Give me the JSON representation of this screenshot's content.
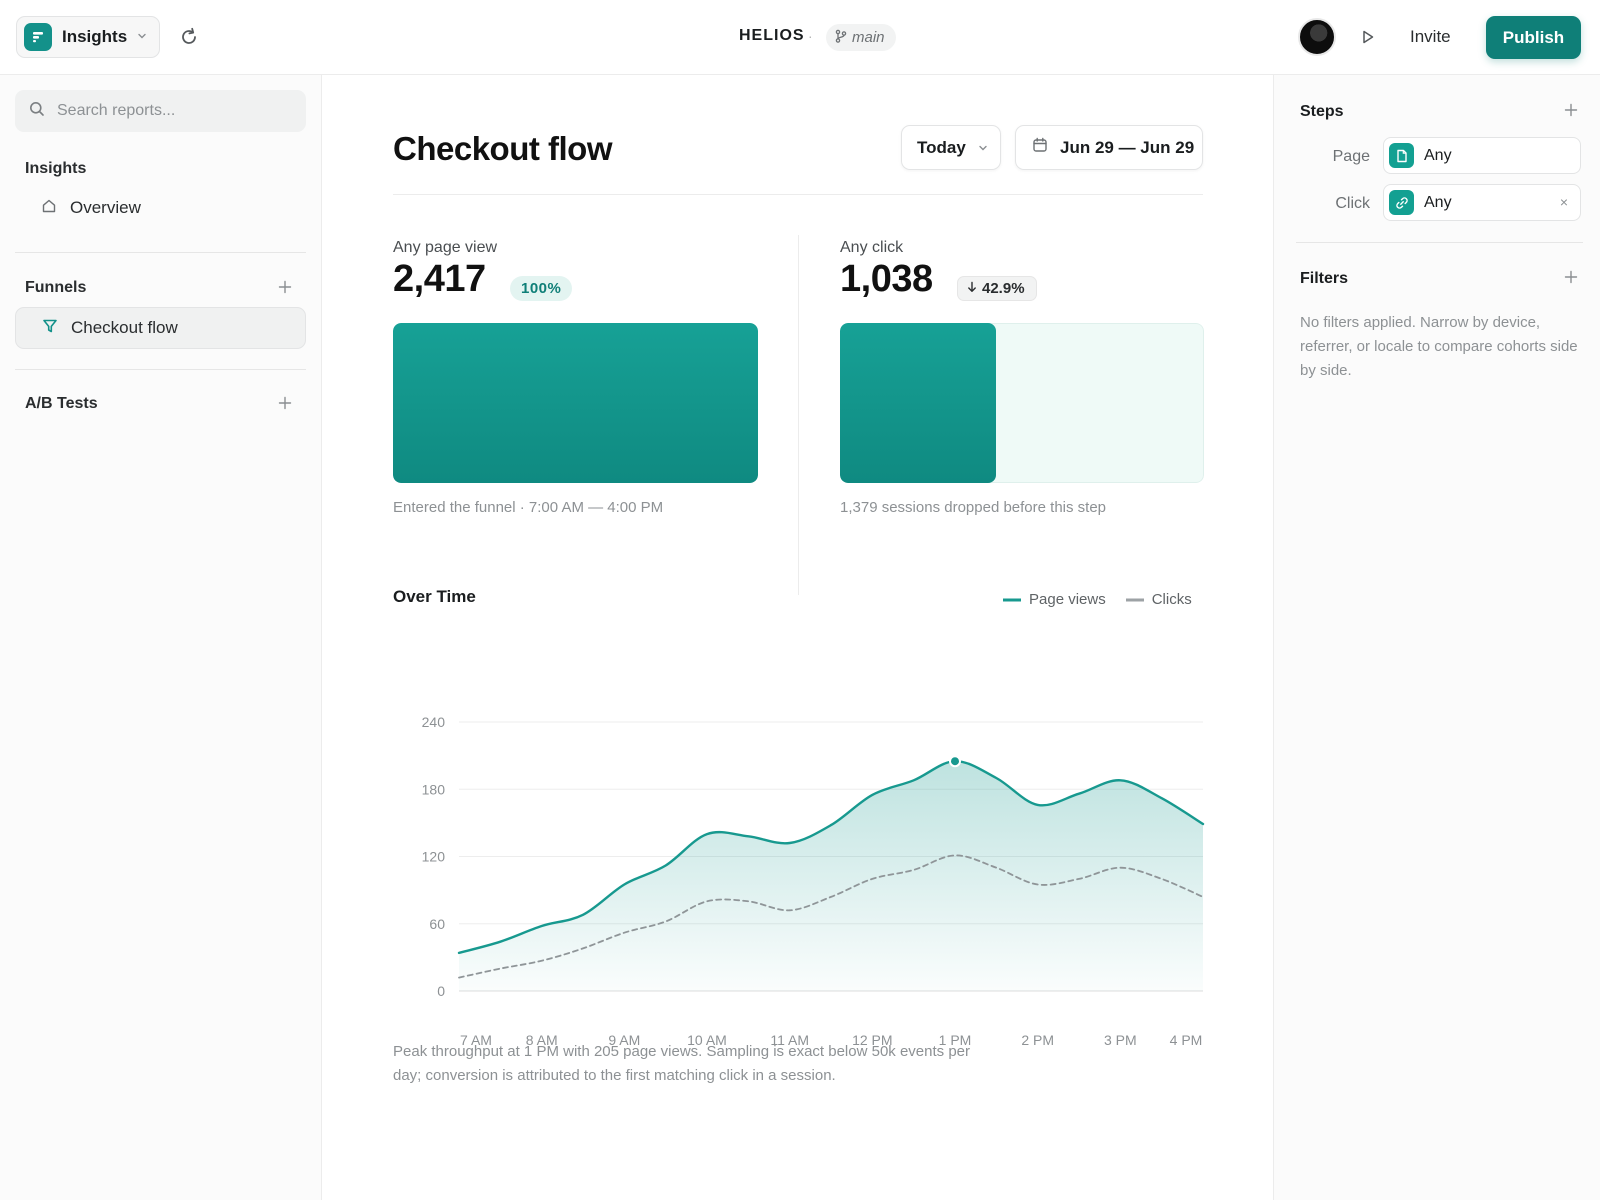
{
  "topbar": {
    "app_name": "Insights",
    "project": "HELIOS",
    "separator": "·",
    "branch": "main",
    "invite_label": "Invite",
    "publish_label": "Publish"
  },
  "sidebar": {
    "search_placeholder": "Search reports...",
    "sections": [
      {
        "title": "Insights",
        "items": [
          {
            "label": "Overview",
            "icon": "home-icon"
          }
        ]
      },
      {
        "title": "Funnels",
        "items": [
          {
            "label": "Checkout flow",
            "icon": "funnel-icon",
            "active": true
          }
        ]
      },
      {
        "title": "A/B Tests",
        "items": []
      }
    ]
  },
  "main": {
    "title": "Checkout flow",
    "period_label": "Today",
    "date_range": "Jun 29 — Jun 29",
    "steps": [
      {
        "label": "Any page view",
        "value": "2,417",
        "badge": "100%",
        "fraction": 1.0,
        "note": "Entered the funnel · 7:00 AM — 4:00 PM"
      },
      {
        "label": "Any click",
        "value": "1,038",
        "badge": "42.9%",
        "badge_icon": "arrow-down-icon",
        "fraction": 0.429,
        "note": "1,379 sessions dropped before this step"
      }
    ],
    "chart_title": "Over Time",
    "chart_note": "Peak throughput at 1 PM with 205 page views. Sampling is exact below 50k events per day; conversion is attributed to the first matching click in a session."
  },
  "chart_data": {
    "type": "line",
    "title": "Over Time",
    "xlabel": "",
    "ylabel": "",
    "categories": [
      "7 AM",
      "8 AM",
      "9 AM",
      "10 AM",
      "11 AM",
      "12 PM",
      "1 PM",
      "2 PM",
      "3 PM",
      "4 PM"
    ],
    "x": [
      7.0,
      7.5,
      8.0,
      8.5,
      9.0,
      9.5,
      10.0,
      10.5,
      11.0,
      11.5,
      12.0,
      12.5,
      13.0,
      13.5,
      14.0,
      14.5,
      15.0,
      15.5,
      16.0
    ],
    "series": [
      {
        "name": "Page views",
        "values": [
          34,
          44,
          58,
          68,
          95,
          112,
          140,
          138,
          132,
          148,
          175,
          188,
          205,
          190,
          166,
          176,
          188,
          172,
          149
        ],
        "color": "#17998f",
        "style": "solid",
        "area": true
      },
      {
        "name": "Clicks",
        "values": [
          12,
          20,
          27,
          38,
          52,
          62,
          80,
          80,
          72,
          84,
          100,
          108,
          121,
          110,
          95,
          100,
          110,
          100,
          84
        ],
        "color": "#8f9598",
        "style": "dashed"
      }
    ],
    "ylim": [
      0,
      240
    ],
    "yticks": [
      0,
      60,
      120,
      180,
      240
    ],
    "highlight": {
      "x": 13.0,
      "series": "Page views"
    },
    "grid": true,
    "legend": "top-right"
  },
  "rightbar": {
    "steps_title": "Steps",
    "steps": [
      {
        "label": "Page",
        "value": "Any",
        "icon": "page-icon",
        "clearable": false
      },
      {
        "label": "Click",
        "value": "Any",
        "icon": "link-icon",
        "clearable": true
      }
    ],
    "clear_glyph": "×",
    "filters_title": "Filters",
    "filters_note": "No filters applied. Narrow by device, referrer, or locale to compare cohorts side by side."
  },
  "colors": {
    "accent": "#0f7f78",
    "accent_light": "#17998f",
    "muted_line": "#8f9598"
  }
}
